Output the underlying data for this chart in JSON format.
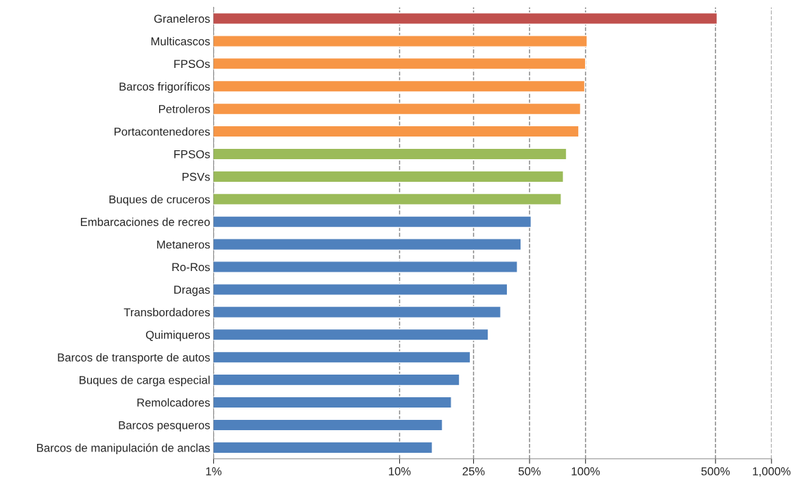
{
  "chart_data": {
    "type": "bar",
    "orientation": "horizontal",
    "log": "x",
    "categories": [
      "Graneleros",
      "Multicascos",
      "FPSOs",
      "Barcos frigoríficos",
      "Petroleros",
      "Portacontenedores",
      "FPSOs",
      "PSVs",
      "Buques de cruceros",
      "Embarcaciones de recreo",
      "Metaneros",
      "Ro-Ros",
      "Dragas",
      "Transbordadores",
      "Quimiqueros",
      "Barcos de transporte de autos",
      "Buques de carga especial",
      "Remolcadores",
      "Barcos pesqueros",
      "Barcos de manipulación de anclas"
    ],
    "values": [
      510,
      102,
      100,
      99,
      94,
      92,
      79,
      76,
      74,
      51,
      45,
      43,
      38,
      35,
      30,
      24,
      21,
      19,
      17,
      15
    ],
    "colors": [
      "#c0504d",
      "#f79646",
      "#f79646",
      "#f79646",
      "#f79646",
      "#f79646",
      "#9bbb59",
      "#9bbb59",
      "#9bbb59",
      "#4f81bd",
      "#4f81bd",
      "#4f81bd",
      "#4f81bd",
      "#4f81bd",
      "#4f81bd",
      "#4f81bd",
      "#4f81bd",
      "#4f81bd",
      "#4f81bd",
      "#4f81bd"
    ],
    "xlim": [
      1,
      1000
    ],
    "xticks": [
      {
        "value": 1,
        "label": "1%"
      },
      {
        "value": 10,
        "label": "10%"
      },
      {
        "value": 25,
        "label": "25%"
      },
      {
        "value": 50,
        "label": "50%"
      },
      {
        "value": 100,
        "label": "100%"
      },
      {
        "value": 500,
        "label": "500%"
      },
      {
        "value": 1000,
        "label": "1,000%"
      }
    ],
    "grid": "x",
    "legend": false
  }
}
